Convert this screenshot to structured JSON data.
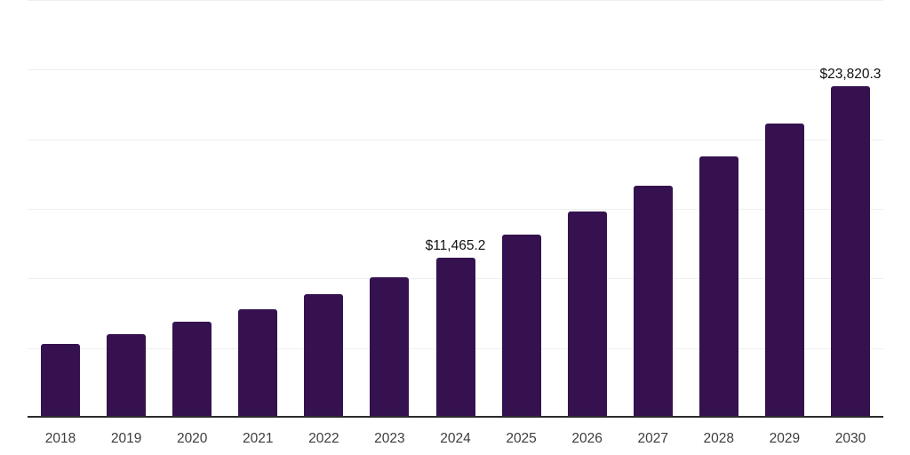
{
  "chart_data": {
    "type": "bar",
    "title": "",
    "xlabel": "",
    "ylabel": "",
    "categories": [
      "2018",
      "2019",
      "2020",
      "2021",
      "2022",
      "2023",
      "2024",
      "2025",
      "2026",
      "2027",
      "2028",
      "2029",
      "2030"
    ],
    "values": [
      5290,
      5990,
      6880,
      7770,
      8850,
      10060,
      11465.2,
      13120,
      14780,
      16690,
      18790,
      21140,
      23820.3
    ],
    "data_labels": {
      "2024": "$11,465.2",
      "2030": "$23,820.3"
    },
    "ylim": [
      0,
      30000
    ],
    "gridline_step": 5000,
    "grid": "horizontal",
    "legend": "none",
    "colors": {
      "bar": "#35124f",
      "gridline": "#efefef",
      "axis_line": "#2b2b2b",
      "tick_label": "#3d3d3d",
      "data_label": "#111111",
      "background": "#ffffff"
    }
  }
}
